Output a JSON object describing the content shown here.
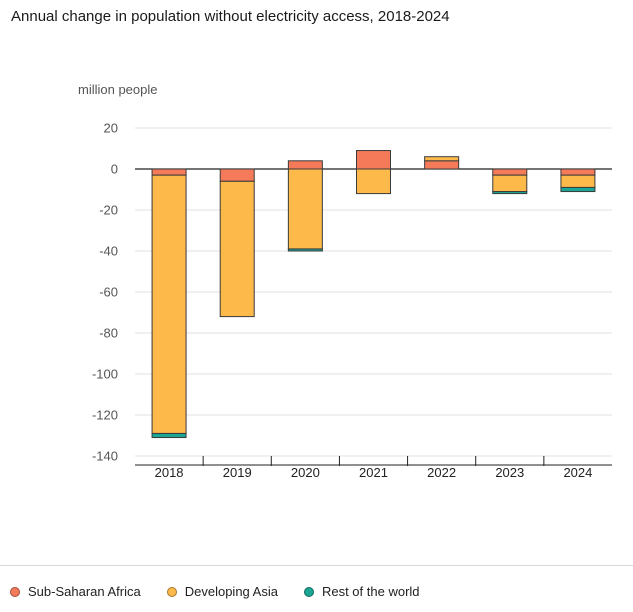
{
  "chart_data": {
    "type": "bar",
    "stacked": true,
    "title": "Annual change in population without electricity access, 2018-2024",
    "ylabel": "million people",
    "xlabel": "",
    "categories": [
      "2018",
      "2019",
      "2020",
      "2021",
      "2022",
      "2023",
      "2024"
    ],
    "ylim": [
      -140,
      20
    ],
    "yticks": [
      20,
      0,
      -20,
      -40,
      -60,
      -80,
      -100,
      -120,
      -140
    ],
    "grid": true,
    "legend_position": "bottom",
    "series": [
      {
        "name": "Sub-Saharan Africa",
        "color": "#f47a5a",
        "values": [
          -3,
          -6,
          4,
          9,
          4,
          -3,
          -3
        ]
      },
      {
        "name": "Developing Asia",
        "color": "#fdb94a",
        "values": [
          -126,
          -66,
          -39,
          -12,
          2,
          -8,
          -6
        ]
      },
      {
        "name": "Rest of the world",
        "color": "#1aa594",
        "values": [
          -2,
          0,
          -1,
          0,
          0,
          -1,
          -2
        ]
      }
    ]
  }
}
